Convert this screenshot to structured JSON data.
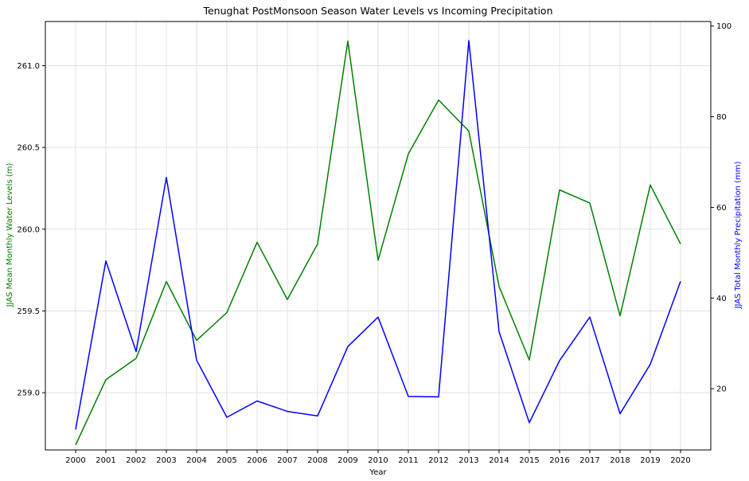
{
  "chart_data": {
    "type": "line",
    "title": "Tenughat PostMonsoon Season Water Levels vs Incoming Precipitation",
    "xlabel": "Year",
    "ylabel_left": "JJAS Mean Monthly Water Levels (m)",
    "ylabel_right": "JJAS Total Monthly Precipitation (mm)",
    "x": [
      "2000",
      "2001",
      "2002",
      "2003",
      "2004",
      "2005",
      "2006",
      "2007",
      "2008",
      "2009",
      "2010",
      "2011",
      "2012",
      "2013",
      "2014",
      "2015",
      "2016",
      "2017",
      "2018",
      "2019",
      "2020"
    ],
    "ylim_left": [
      258.65,
      261.27
    ],
    "ylim_right": [
      6.5,
      101
    ],
    "yticks_left": [
      "259.0",
      "259.5",
      "260.0",
      "260.5",
      "261.0"
    ],
    "yticks_right": [
      "20",
      "40",
      "60",
      "80",
      "100"
    ],
    "grid": true,
    "series": [
      {
        "name": "",
        "axis": "left",
        "color": "#008000",
        "values": [
          258.68,
          259.08,
          259.21,
          259.68,
          259.32,
          259.49,
          259.92,
          259.57,
          259.91,
          261.15,
          259.81,
          260.46,
          260.79,
          260.6,
          259.65,
          259.2,
          260.24,
          260.16,
          259.47,
          260.27,
          259.91
        ]
      },
      {
        "name": "",
        "axis": "right",
        "color": "#0000ff",
        "values": [
          11,
          48.2,
          28.2,
          66.6,
          26.3,
          13.7,
          17.3,
          15,
          14,
          29.3,
          35.8,
          18.3,
          18.2,
          96.8,
          32.6,
          12.5,
          26.2,
          35.8,
          14.5,
          25.4,
          43.7
        ]
      }
    ]
  }
}
